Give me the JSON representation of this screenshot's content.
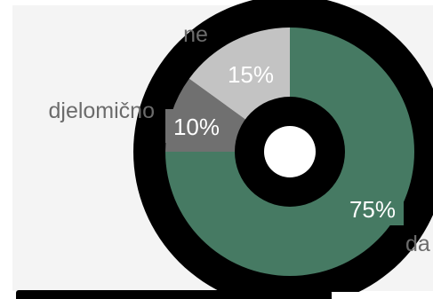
{
  "chart_data": {
    "type": "pie",
    "title": "",
    "categories": [
      "da",
      "djelomično",
      "ne"
    ],
    "values": [
      75,
      10,
      15
    ],
    "value_labels": [
      "75%",
      "10%",
      "15%"
    ],
    "colors": [
      "#467a63",
      "#707070",
      "#c3c3c3"
    ],
    "donut": true,
    "legend": "none"
  }
}
